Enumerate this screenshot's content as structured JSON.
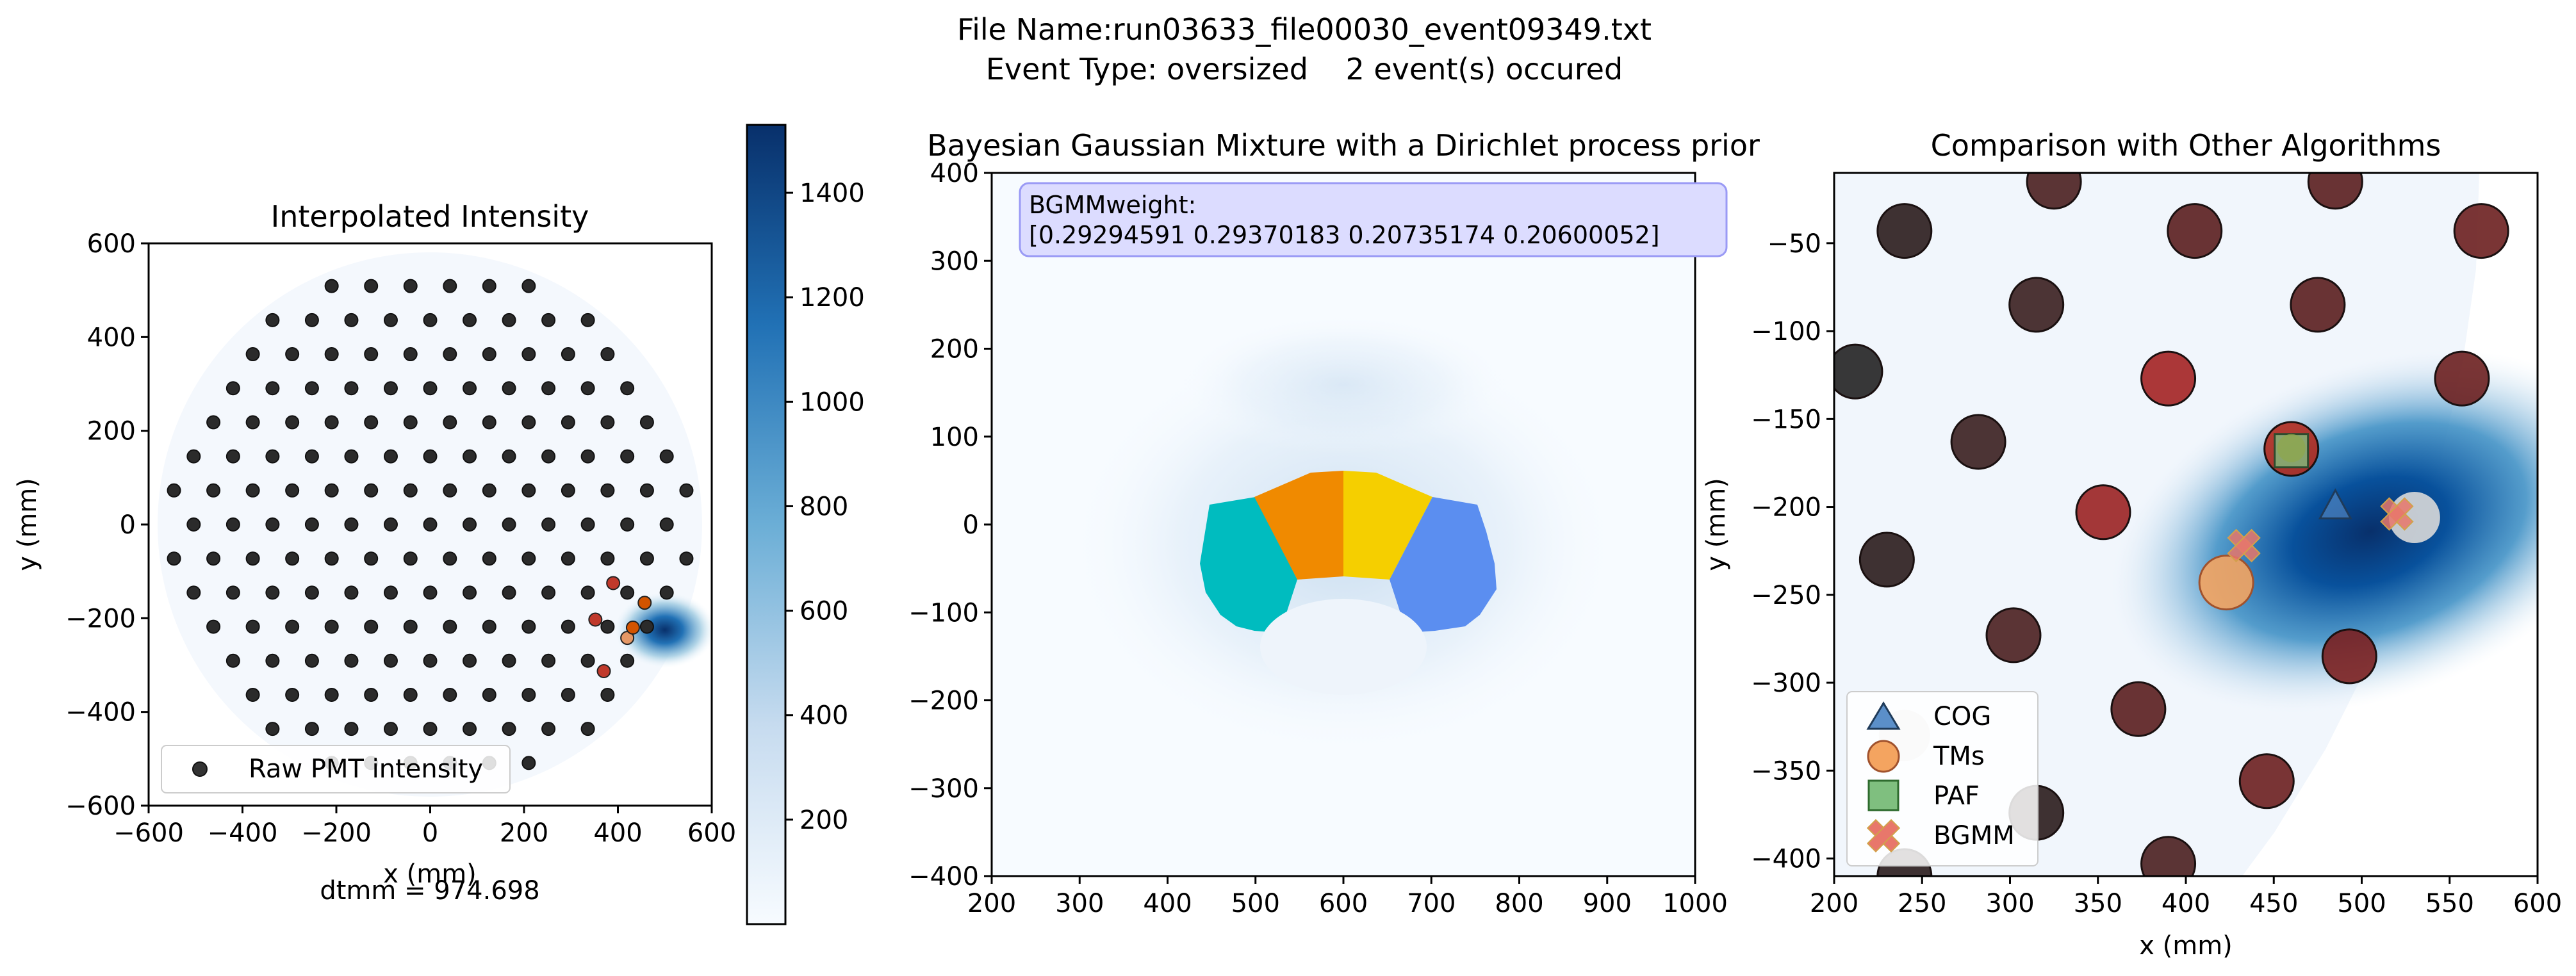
{
  "figure": {
    "title_line1": "File Name:run03633_file00030_event09349.txt",
    "title_line2": "Event Type: oversized    2 event(s) occured"
  },
  "chart_data": [
    {
      "type": "scatter",
      "title": "Interpolated Intensity",
      "xlabel": "x (mm)",
      "ylabel": "y (mm)",
      "xlim": [
        -600,
        600
      ],
      "ylim": [
        -600,
        600
      ],
      "xticks": [
        -600,
        -400,
        -200,
        0,
        200,
        400,
        600
      ],
      "yticks": [
        -600,
        -400,
        -200,
        0,
        200,
        400,
        600
      ],
      "legend": {
        "position": "lower center",
        "entries": [
          "Raw PMT intensity"
        ]
      },
      "annotation": "dtmm = 974.698",
      "pmt_grid": {
        "pitch_mm": 84,
        "row_spacing_mm": 72.7,
        "radius_mm": 570
      },
      "hot_pmts": [
        {
          "x": 390,
          "y": -125,
          "color": "#c0392b"
        },
        {
          "x": 457,
          "y": -167,
          "color": "#d35400"
        },
        {
          "x": 352,
          "y": -203,
          "color": "#c0392b"
        },
        {
          "x": 420,
          "y": -242,
          "color": "#e59866"
        },
        {
          "x": 370,
          "y": -313,
          "color": "#c0392b"
        },
        {
          "x": 432,
          "y": -220,
          "color": "#d35400"
        }
      ],
      "intensity_hotspot": {
        "x": 500,
        "y": -225,
        "peak": 1500
      }
    },
    {
      "type": "heatmap",
      "colorbar_ticks": [
        200,
        400,
        600,
        800,
        1000,
        1200,
        1400
      ],
      "colorbar_range": [
        0,
        1530
      ],
      "colormap": [
        "#f7fbff",
        "#c6dbef",
        "#6baed6",
        "#2171b5",
        "#08306b"
      ]
    },
    {
      "type": "heatmap",
      "title": "Bayesian Gaussian Mixture with a Dirichlet process prior",
      "xlim": [
        200,
        1000
      ],
      "ylim": [
        -400,
        400
      ],
      "xticks": [
        200,
        300,
        400,
        500,
        600,
        700,
        800,
        900,
        1000
      ],
      "yticks": [
        -400,
        -300,
        -200,
        -100,
        0,
        100,
        200,
        300,
        400
      ],
      "annotation_lines": [
        "BGMMweight:",
        "[0.29294591 0.29370183 0.20735174 0.20600052]"
      ],
      "weights": [
        0.29294591,
        0.29370183,
        0.20735174,
        0.20600052
      ],
      "cluster_colors": [
        "#00bcbf",
        "#f08a00",
        "#f5cf00",
        "#5b8ef0"
      ]
    },
    {
      "type": "scatter",
      "title": "Comparison with Other Algorithms",
      "xlabel": "x (mm)",
      "ylabel": "y (mm)",
      "xlim": [
        200,
        600
      ],
      "ylim": [
        -410,
        -10
      ],
      "xticks": [
        200,
        250,
        300,
        350,
        400,
        450,
        500,
        550,
        600
      ],
      "yticks": [
        -50,
        -100,
        -150,
        -200,
        -250,
        -300,
        -350,
        -400
      ],
      "legend": {
        "position": "lower left",
        "entries": [
          "COG",
          "TMs",
          "PAF",
          "BGMM"
        ]
      },
      "cog": {
        "x": 485,
        "y": -200
      },
      "tms": {
        "x": 423,
        "y": -243
      },
      "paf": {
        "x": 460,
        "y": -168
      },
      "bgmm": [
        {
          "x": 433,
          "y": -222
        },
        {
          "x": 520,
          "y": -204
        }
      ],
      "pmts": [
        {
          "x": 240,
          "y": -43,
          "c": "#2a1c1c"
        },
        {
          "x": 325,
          "y": -15,
          "c": "#4a1f1f"
        },
        {
          "x": 405,
          "y": -43,
          "c": "#5a1e1e"
        },
        {
          "x": 485,
          "y": -15,
          "c": "#5a1e1e"
        },
        {
          "x": 568,
          "y": -43,
          "c": "#6b1f1f"
        },
        {
          "x": 212,
          "y": -123,
          "c": "#222222"
        },
        {
          "x": 315,
          "y": -85,
          "c": "#3a1f1f"
        },
        {
          "x": 390,
          "y": -127,
          "c": "#a32222"
        },
        {
          "x": 475,
          "y": -85,
          "c": "#5a1e1e"
        },
        {
          "x": 557,
          "y": -127,
          "c": "#6b1f1f"
        },
        {
          "x": 282,
          "y": -163,
          "c": "#3a1f1f"
        },
        {
          "x": 460,
          "y": -167,
          "c": "#b02a1e"
        },
        {
          "x": 230,
          "y": -230,
          "c": "#2a1c1c"
        },
        {
          "x": 353,
          "y": -203,
          "c": "#9a2222"
        },
        {
          "x": 302,
          "y": -273,
          "c": "#4a1f1f"
        },
        {
          "x": 493,
          "y": -285,
          "c": "#7a1f1f"
        },
        {
          "x": 373,
          "y": -315,
          "c": "#5a1e1e"
        },
        {
          "x": 446,
          "y": -356,
          "c": "#6b1f1f"
        },
        {
          "x": 315,
          "y": -374,
          "c": "#2a1c1c"
        },
        {
          "x": 390,
          "y": -403,
          "c": "#4a1f1f"
        },
        {
          "x": 240,
          "y": -410,
          "c": "#2a1c1c"
        }
      ],
      "grey_pmts": [
        {
          "x": 530,
          "y": -206
        },
        {
          "x": 240,
          "y": -330
        }
      ]
    }
  ]
}
